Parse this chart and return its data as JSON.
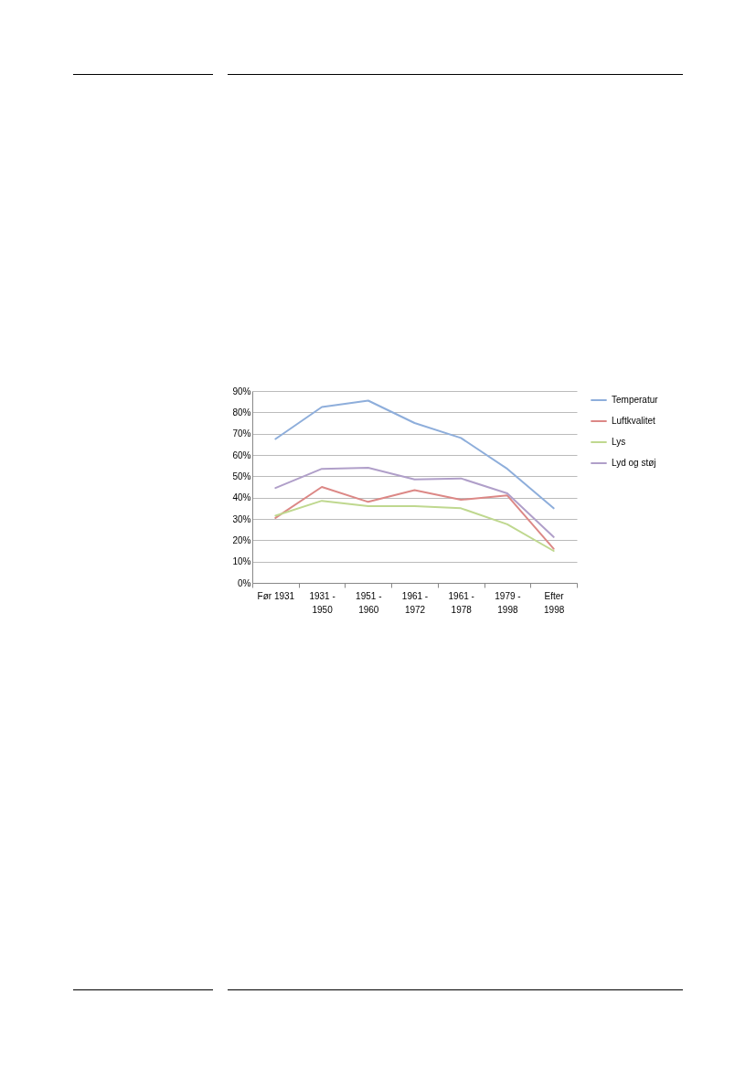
{
  "chart_data": {
    "type": "line",
    "categories": [
      "Før 1931",
      "1931 - 1950",
      "1951 - 1960",
      "1961 - 1972",
      "1961 - 1978",
      "1979 - 1998",
      "Efter 1998"
    ],
    "series": [
      {
        "name": "Temperatur",
        "color": "#8eaedb",
        "values": [
          67.5,
          82.5,
          85.5,
          75,
          68,
          53.5,
          35
        ]
      },
      {
        "name": "Luftkvalitet",
        "color": "#dc8886",
        "values": [
          30.5,
          45,
          38,
          43.5,
          39,
          41,
          16
        ]
      },
      {
        "name": "Lys",
        "color": "#bfd88f",
        "values": [
          31.5,
          38.5,
          36,
          36,
          35,
          27.5,
          15
        ]
      },
      {
        "name": "Lyd og støj",
        "color": "#b09fc9",
        "values": [
          44.5,
          53.5,
          54,
          48.5,
          49,
          42,
          21.5
        ]
      }
    ],
    "ylim": [
      0,
      90
    ],
    "yticks": [
      {
        "value": 0,
        "label": "0%"
      },
      {
        "value": 10,
        "label": "10%"
      },
      {
        "value": 20,
        "label": "20%"
      },
      {
        "value": 30,
        "label": "30%"
      },
      {
        "value": 40,
        "label": "40%"
      },
      {
        "value": 50,
        "label": "50%"
      },
      {
        "value": 60,
        "label": "60%"
      },
      {
        "value": 70,
        "label": "70%"
      },
      {
        "value": 80,
        "label": "80%"
      },
      {
        "value": 90,
        "label": "90%"
      }
    ],
    "grid": "y",
    "legend": "right",
    "marker": "none",
    "line_style": "solid"
  }
}
